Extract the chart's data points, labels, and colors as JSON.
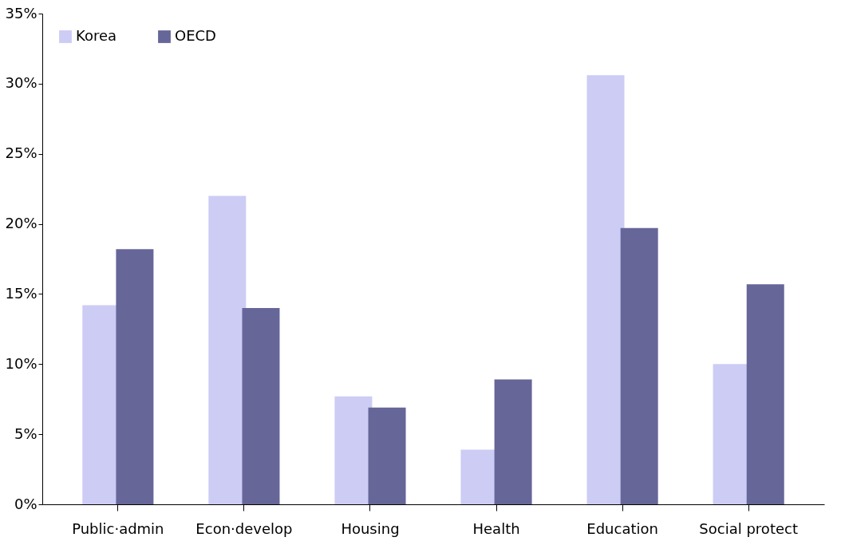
{
  "chart_data": {
    "type": "bar",
    "categories": [
      "Public·admin",
      "Econ·develop",
      "Housing",
      "Health",
      "Education",
      "Social protect"
    ],
    "series": [
      {
        "name": "Korea",
        "color": "#ccccf5",
        "values": [
          14.2,
          22.0,
          7.7,
          3.9,
          30.6,
          10.0
        ]
      },
      {
        "name": "OECD",
        "color": "#666699",
        "values": [
          18.2,
          14.0,
          6.9,
          8.9,
          19.7,
          15.7
        ]
      }
    ],
    "ylim": [
      0,
      35
    ],
    "yticks": [
      {
        "value": 0,
        "label": "0%"
      },
      {
        "value": 5,
        "label": "5%"
      },
      {
        "value": 10,
        "label": "10%"
      },
      {
        "value": 15,
        "label": "15%"
      },
      {
        "value": 20,
        "label": "20%"
      },
      {
        "value": 25,
        "label": "25%"
      },
      {
        "value": 30,
        "label": "30%"
      },
      {
        "value": 35,
        "label": "35%"
      }
    ],
    "grid": false,
    "legend": "top left"
  }
}
